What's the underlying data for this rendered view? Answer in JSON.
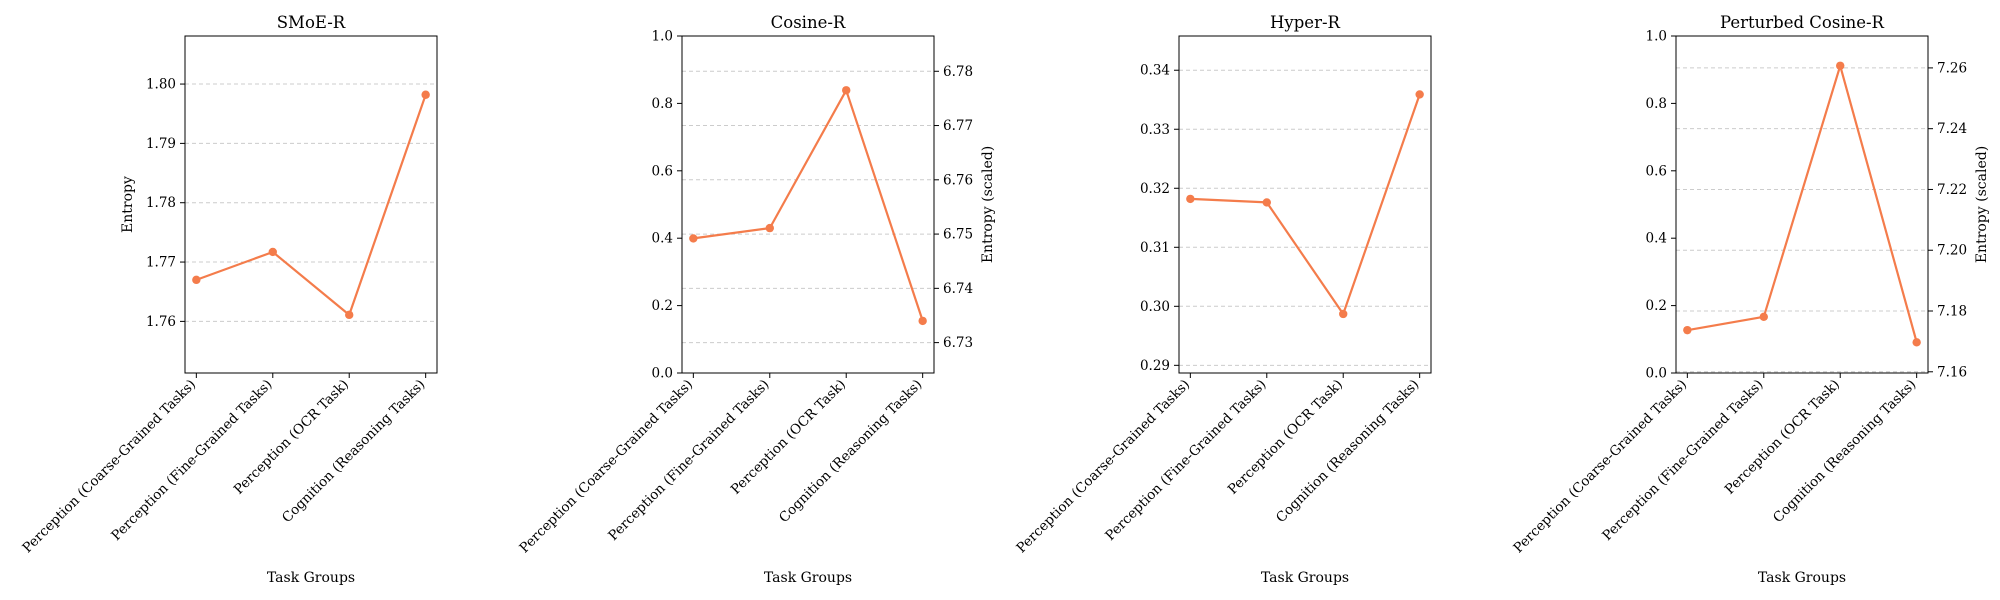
{
  "figure": {
    "categories": [
      "Perception (Coarse-Grained Tasks)",
      "Perception (Fine-Grained Tasks)",
      "Perception (OCR Task)",
      "Cognition (Reasoning Tasks)"
    ],
    "line_color": "#f47c4b",
    "grid_color": "#cccccc"
  },
  "chart_data": [
    {
      "type": "line",
      "title": "SMoE-R",
      "xlabel": "Task Groups",
      "ylabel": "Entropy",
      "y_axis": {
        "lim": [
          1.7513,
          1.8081
        ],
        "ticks": [
          1.76,
          1.77,
          1.78,
          1.79,
          1.8
        ],
        "tick_labels": [
          "1.76",
          "1.77",
          "1.78",
          "1.79",
          "1.80"
        ]
      },
      "series": [
        {
          "values": [
            1.767,
            1.7717,
            1.7611,
            1.7982
          ]
        }
      ],
      "grid": true
    },
    {
      "type": "line",
      "title": "Cosine-R",
      "xlabel": "Task Groups",
      "ylabel": "",
      "y_axis": {
        "lim": [
          0,
          1
        ],
        "ticks": [
          0,
          0.2,
          0.4,
          0.6,
          0.8,
          1.0
        ],
        "tick_labels": [
          "0.0",
          "0.2",
          "0.4",
          "0.6",
          "0.8",
          "1.0"
        ]
      },
      "y_axis_right": {
        "label": "Entropy (scaled)",
        "lim": [
          6.7244,
          6.7865
        ],
        "ticks": [
          6.73,
          6.74,
          6.75,
          6.76,
          6.77,
          6.78
        ],
        "tick_labels": [
          "6.73",
          "6.74",
          "6.75",
          "6.76",
          "6.77",
          "6.78"
        ]
      },
      "series": [
        {
          "values": [
            6.7492,
            6.7511,
            6.7765,
            6.734
          ]
        }
      ],
      "grid": true
    },
    {
      "type": "line",
      "title": "Hyper-R",
      "xlabel": "Task Groups",
      "ylabel": "",
      "y_axis": {
        "lim": [
          0.2887,
          0.3458
        ],
        "ticks": [
          0.29,
          0.3,
          0.31,
          0.32,
          0.33,
          0.34
        ],
        "tick_labels": [
          "0.29",
          "0.30",
          "0.31",
          "0.32",
          "0.33",
          "0.34"
        ]
      },
      "series": [
        {
          "values": [
            0.3182,
            0.3176,
            0.2987,
            0.3359
          ]
        }
      ],
      "grid": true
    },
    {
      "type": "line",
      "title": "Perturbed Cosine-R",
      "xlabel": "Task Groups",
      "ylabel": "",
      "y_axis": {
        "lim": [
          0,
          1
        ],
        "ticks": [
          0,
          0.2,
          0.4,
          0.6,
          0.8,
          1.0
        ],
        "tick_labels": [
          "0.0",
          "0.2",
          "0.4",
          "0.6",
          "0.8",
          "1.0"
        ]
      },
      "y_axis_right": {
        "label": "Entropy (scaled)",
        "lim": [
          7.1596,
          7.2705
        ],
        "ticks": [
          7.16,
          7.18,
          7.2,
          7.22,
          7.24,
          7.26
        ],
        "tick_labels": [
          "7.16",
          "7.18",
          "7.20",
          "7.22",
          "7.24",
          "7.26"
        ]
      },
      "series": [
        {
          "values": [
            7.1737,
            7.1781,
            7.2607,
            7.1697
          ]
        }
      ],
      "grid": true
    }
  ]
}
